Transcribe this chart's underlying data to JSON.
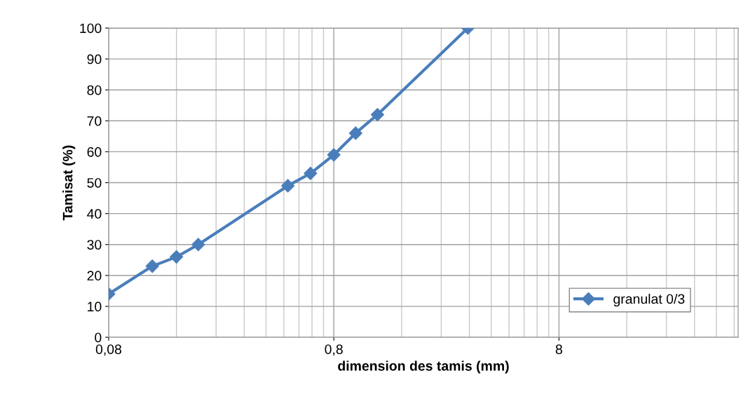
{
  "chart_data": {
    "type": "line",
    "xlabel": "dimension des tamis (mm)",
    "ylabel": "Tamisat (%)",
    "x": [
      0.08,
      0.125,
      0.16,
      0.2,
      0.5,
      0.63,
      0.8,
      1.0,
      1.25,
      3.15
    ],
    "series": [
      {
        "name": "granulat 0/3",
        "color": "#4a7ebb",
        "values": [
          14,
          23,
          26,
          30,
          49,
          53,
          59,
          66,
          72,
          100
        ]
      }
    ],
    "log": "x",
    "xlim": [
      0.08,
      50
    ],
    "xticks": [
      {
        "value": 0.08,
        "label": "0,08"
      },
      {
        "value": 0.8,
        "label": "0,8"
      },
      8
    ],
    "ylim": [
      0,
      100
    ],
    "yticks": [
      0,
      10,
      20,
      30,
      40,
      50,
      60,
      70,
      80,
      90,
      100
    ],
    "grid": true,
    "legend": "lower right",
    "marker": "diamond",
    "line_style": "solid"
  }
}
